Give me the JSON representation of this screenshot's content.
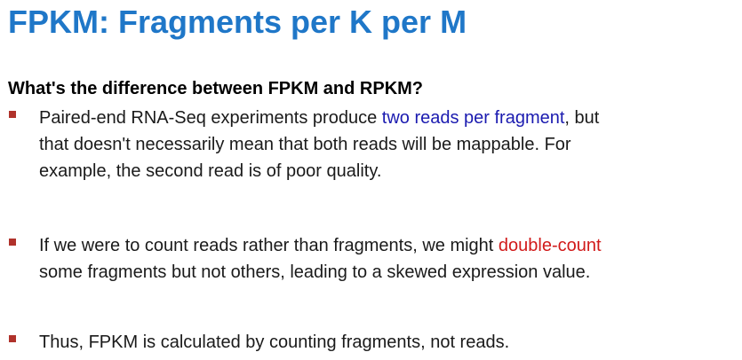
{
  "slide": {
    "title": "FPKM: Fragments per K per M",
    "question": "What's the difference between FPKM and RPKM?",
    "bullets": [
      {
        "lines": [
          {
            "before": "Paired-end RNA-Seq experiments produce ",
            "highlight": "two reads per fragment",
            "after": ", but"
          },
          {
            "text": "that doesn't necessarily mean that both reads will be mappable. For"
          },
          {
            "text": "example, the second read is of poor quality."
          }
        ]
      },
      {
        "lines": [
          {
            "before": "If we were to count reads rather than fragments, we might ",
            "highlight": "double-count",
            "after": ""
          },
          {
            "text": "some fragments but not others, leading to a skewed expression value."
          }
        ]
      },
      {
        "lines": [
          {
            "text": "Thus, FPKM is calculated by counting fragments, not reads."
          }
        ]
      }
    ]
  },
  "colors": {
    "title": "#1f77c8",
    "bullet_marker": "#b0322b",
    "highlight_blue": "#1b1bb0",
    "highlight_red": "#d11a1a"
  }
}
